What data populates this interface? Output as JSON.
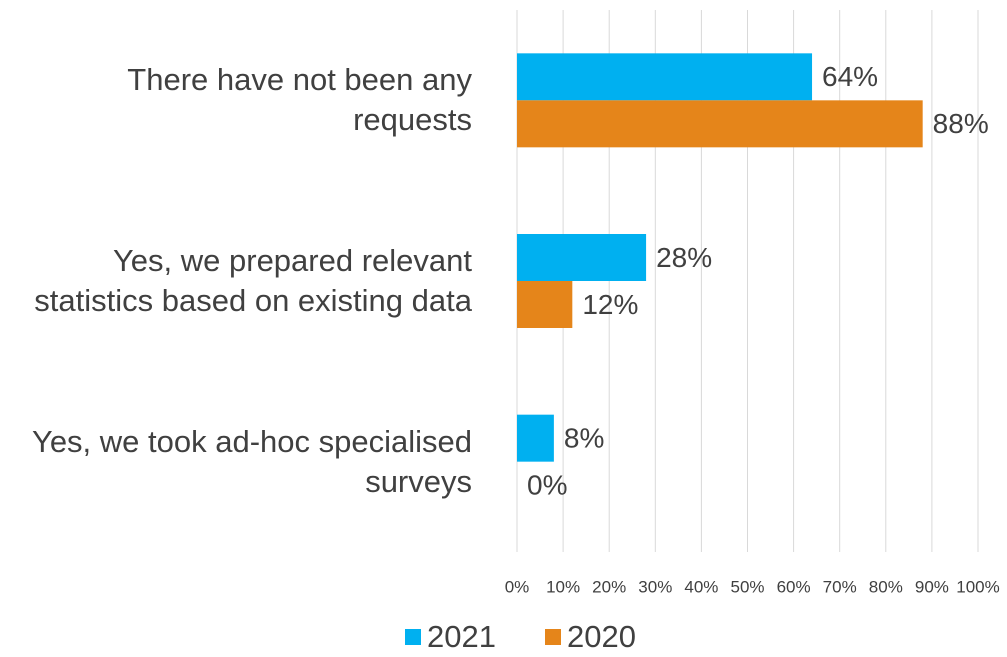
{
  "chart_data": {
    "type": "hbar",
    "categories": [
      "There have not been any requests",
      "Yes, we prepared relevant statistics based on existing data",
      "Yes, we took ad-hoc specialised surveys"
    ],
    "series": [
      {
        "name": "2021",
        "color": "#00b0f0",
        "values": [
          64,
          28,
          8
        ],
        "value_labels": [
          "64%",
          "28%",
          "8%"
        ]
      },
      {
        "name": "2020",
        "color": "#e5851a",
        "values": [
          88,
          12,
          0
        ],
        "value_labels": [
          "88%",
          "12%",
          "0%"
        ]
      }
    ],
    "xlim": [
      0,
      100
    ],
    "xticks": [
      {
        "value": 0,
        "label": "0%"
      },
      {
        "value": 10,
        "label": "10%"
      },
      {
        "value": 20,
        "label": "20%"
      },
      {
        "value": 30,
        "label": "30%"
      },
      {
        "value": 40,
        "label": "40%"
      },
      {
        "value": 50,
        "label": "50%"
      },
      {
        "value": 60,
        "label": "60%"
      },
      {
        "value": 70,
        "label": "70%"
      },
      {
        "value": 80,
        "label": "80%"
      },
      {
        "value": 90,
        "label": "90%"
      },
      {
        "value": 100,
        "label": "100%"
      }
    ],
    "grid": true,
    "legend": "bottom"
  }
}
